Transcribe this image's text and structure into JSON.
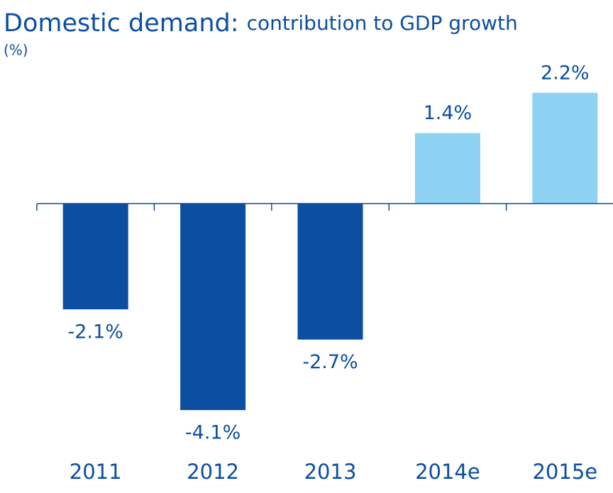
{
  "chart_data": {
    "type": "bar",
    "title": "Domestic demand:",
    "subtitle": "contribution to GDP growth",
    "y_label": "(%)",
    "categories": [
      "2011",
      "2012",
      "2013",
      "2014e",
      "2015e"
    ],
    "values": [
      -2.1,
      -4.1,
      -2.7,
      1.4,
      2.2
    ],
    "value_labels": [
      "-2.1%",
      "-4.1%",
      "-2.7%",
      "1.4%",
      "2.2%"
    ],
    "colors": [
      "#0b4ea2",
      "#0b4ea2",
      "#0b4ea2",
      "#8dd2f2",
      "#8dd2f2"
    ],
    "ylim": [
      -4.5,
      2.5
    ]
  }
}
